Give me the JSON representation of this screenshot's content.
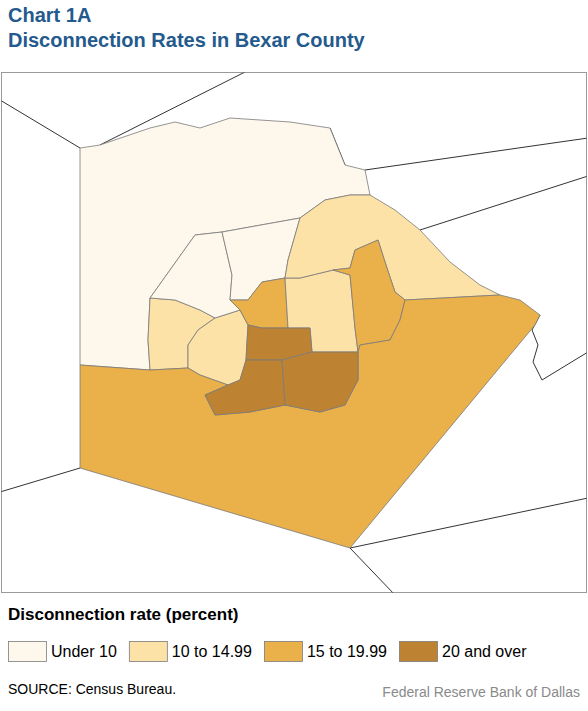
{
  "chart_data": {
    "type": "choropleth",
    "title": "Chart 1A",
    "subtitle": "Disconnection Rates in Bexar County",
    "legend_title": "Disconnection rate (percent)",
    "legend": "bottom",
    "categories": [
      "Under 10",
      "10 to 14.99",
      "15 to 19.99",
      "20 and over"
    ],
    "colors": [
      "#fef8ec",
      "#fde2a8",
      "#eab04a",
      "#bd8332"
    ],
    "regions": [
      "Under 10",
      "10 to 14.99",
      "10 to 14.99",
      "Under 10",
      "Under 10",
      "15 to 19.99",
      "10 to 14.99",
      "10 to 14.99",
      "15 to 19.99",
      "20 and over",
      "20 and over",
      "20 and over",
      "15 to 19.99"
    ],
    "source": "SOURCE: Census Bureau.",
    "credit": "Federal Reserve Bank of Dallas"
  }
}
